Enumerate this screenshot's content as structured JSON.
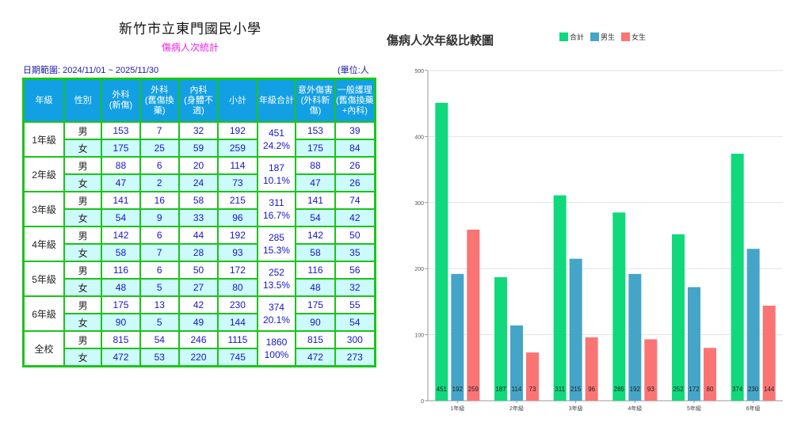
{
  "school": "新竹市立東門國民小學",
  "subtitle": "傷病人次統計",
  "date_range": "日期範圍: 2024/11/01 ~ 2025/11/30",
  "unit": "(單位:人次)",
  "headers": [
    "年級",
    "性別",
    "外科\n(新傷)",
    "外科\n(舊傷換藥)",
    "內科\n(身體不適)",
    "小計",
    "年級合計",
    "意外傷害\n(外科新傷)",
    "一般護理\n(舊傷換藥\n+內科)"
  ],
  "rows": [
    {
      "grade": "1年級",
      "total": "451",
      "pct": "24.2%",
      "m": [
        "男",
        "153",
        "7",
        "32",
        "192",
        "153",
        "39"
      ],
      "f": [
        "女",
        "175",
        "25",
        "59",
        "259",
        "175",
        "84"
      ]
    },
    {
      "grade": "2年級",
      "total": "187",
      "pct": "10.1%",
      "m": [
        "男",
        "88",
        "6",
        "20",
        "114",
        "88",
        "26"
      ],
      "f": [
        "女",
        "47",
        "2",
        "24",
        "73",
        "47",
        "26"
      ]
    },
    {
      "grade": "3年級",
      "total": "311",
      "pct": "16.7%",
      "m": [
        "男",
        "141",
        "16",
        "58",
        "215",
        "141",
        "74"
      ],
      "f": [
        "女",
        "54",
        "9",
        "33",
        "96",
        "54",
        "42"
      ]
    },
    {
      "grade": "4年級",
      "total": "285",
      "pct": "15.3%",
      "m": [
        "男",
        "142",
        "6",
        "44",
        "192",
        "142",
        "50"
      ],
      "f": [
        "女",
        "58",
        "7",
        "28",
        "93",
        "58",
        "35"
      ]
    },
    {
      "grade": "5年級",
      "total": "252",
      "pct": "13.5%",
      "m": [
        "男",
        "116",
        "6",
        "50",
        "172",
        "116",
        "56"
      ],
      "f": [
        "女",
        "48",
        "5",
        "27",
        "80",
        "48",
        "32"
      ]
    },
    {
      "grade": "6年級",
      "total": "374",
      "pct": "20.1%",
      "m": [
        "男",
        "175",
        "13",
        "42",
        "230",
        "175",
        "55"
      ],
      "f": [
        "女",
        "90",
        "5",
        "49",
        "144",
        "90",
        "54"
      ]
    },
    {
      "grade": "全校",
      "total": "1860",
      "pct": "100%",
      "m": [
        "男",
        "815",
        "54",
        "246",
        "1115",
        "815",
        "300"
      ],
      "f": [
        "女",
        "472",
        "53",
        "220",
        "745",
        "472",
        "273"
      ]
    }
  ],
  "chart_data": {
    "type": "bar",
    "title": "傷病人次年級比較圖",
    "categories": [
      "1年級",
      "2年級",
      "3年級",
      "4年級",
      "5年級",
      "6年級"
    ],
    "series": [
      {
        "name": "合計",
        "color": "#0fd97b",
        "values": [
          451,
          187,
          311,
          285,
          252,
          374
        ]
      },
      {
        "name": "男生",
        "color": "#45a5c9",
        "values": [
          192,
          114,
          215,
          192,
          172,
          230
        ]
      },
      {
        "name": "女生",
        "color": "#fa7474",
        "values": [
          259,
          73,
          96,
          93,
          80,
          144
        ]
      }
    ],
    "ylim": [
      0,
      500
    ],
    "yticks": [
      0,
      100,
      200,
      300,
      400,
      500
    ],
    "grid": true,
    "legend": "top"
  }
}
